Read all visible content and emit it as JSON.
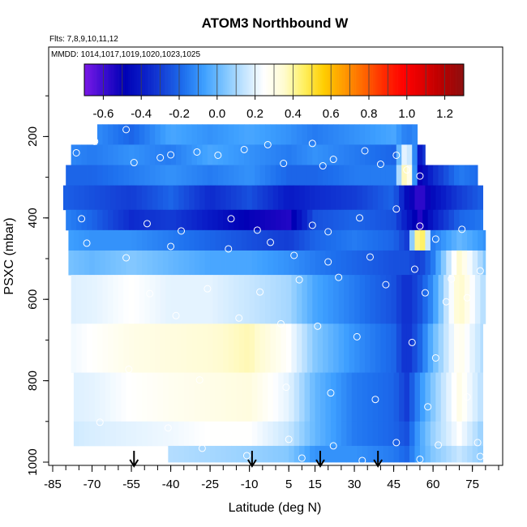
{
  "chart_data": {
    "type": "heatmap",
    "title": "ATOM3 Northbound W",
    "flights_note": "Flts: 7,8,9,10,11,12",
    "dates_note": "MMDD: 1014,1017,1019,1020,1023,1025",
    "xlabel": "Latitude (deg N)",
    "ylabel": "PSXC (mbar)",
    "xlim": [
      -85,
      85
    ],
    "ylim": [
      1000,
      0
    ],
    "x_ticks": [
      -85,
      -70,
      -55,
      -40,
      -25,
      -10,
      5,
      15,
      30,
      45,
      60,
      75
    ],
    "y_ticks": [
      200,
      400,
      600,
      800,
      1000
    ],
    "colorbar": {
      "range": [
        -0.7,
        1.3
      ],
      "ticks": [
        -0.6,
        -0.4,
        -0.2,
        0.0,
        0.2,
        0.4,
        0.6,
        0.8,
        1.0,
        1.2
      ],
      "tick_labels": [
        "-0.6",
        "-0.4",
        "-0.2",
        "0.0",
        "0.2",
        "0.4",
        "0.6",
        "0.8",
        "1.0",
        "1.2"
      ],
      "colors": [
        "#7a18e6",
        "#3a0cd0",
        "#0000b5",
        "#0a1ec8",
        "#1544d8",
        "#1e70ee",
        "#3ea0ff",
        "#7cc4ff",
        "#c2e4ff",
        "#ffffff",
        "#fffbd0",
        "#fff060",
        "#ffcd00",
        "#ff9a00",
        "#ff6600",
        "#ff2a00",
        "#ff0000",
        "#dd0000",
        "#b40000",
        "#8c1010"
      ]
    },
    "arrow_latitudes": [
      -54,
      -9,
      17,
      39
    ],
    "pressure_bands": [
      {
        "p": [
          170,
          220
        ],
        "lat": [
          -68,
          54
        ]
      },
      {
        "p": [
          220,
          270
        ],
        "lat": [
          -78,
          57
        ]
      },
      {
        "p": [
          270,
          320
        ],
        "lat": [
          -80,
          77
        ]
      },
      {
        "p": [
          320,
          380
        ],
        "lat": [
          -81,
          79
        ]
      },
      {
        "p": [
          380,
          430
        ],
        "lat": [
          -80,
          79
        ]
      },
      {
        "p": [
          430,
          480
        ],
        "lat": [
          -79,
          80
        ]
      },
      {
        "p": [
          480,
          540
        ],
        "lat": [
          -79,
          80
        ]
      },
      {
        "p": [
          540,
          660
        ],
        "lat": [
          -78,
          80
        ]
      },
      {
        "p": [
          660,
          780
        ],
        "lat": [
          -78,
          79
        ]
      },
      {
        "p": [
          780,
          900
        ],
        "lat": [
          -77,
          79
        ]
      },
      {
        "p": [
          900,
          960
        ],
        "lat": [
          -77,
          79
        ]
      },
      {
        "p": [
          960,
          1000
        ],
        "lat": [
          -41,
          79
        ]
      }
    ],
    "cross_section_w": [
      {
        "lat": -85,
        "w": [
          -0.1,
          -0.1,
          -0.2,
          -0.2,
          -0.1,
          -0.05,
          0.05,
          0.18,
          0.2,
          0.18,
          0.15,
          0.12
        ]
      },
      {
        "lat": -70,
        "w": [
          -0.1,
          -0.15,
          -0.2,
          -0.25,
          -0.2,
          -0.1,
          0.0,
          0.2,
          0.25,
          0.2,
          0.18,
          0.12
        ]
      },
      {
        "lat": -55,
        "w": [
          -0.2,
          -0.1,
          -0.15,
          -0.3,
          -0.35,
          -0.1,
          0.05,
          0.25,
          0.3,
          0.25,
          0.2,
          0.12
        ]
      },
      {
        "lat": -40,
        "w": [
          -0.05,
          -0.15,
          -0.1,
          -0.2,
          -0.3,
          -0.15,
          0.0,
          0.2,
          0.32,
          0.28,
          0.22,
          0.12
        ]
      },
      {
        "lat": -25,
        "w": [
          -0.1,
          -0.05,
          -0.15,
          -0.35,
          -0.4,
          -0.2,
          -0.05,
          0.2,
          0.34,
          0.3,
          0.25,
          0.1
        ]
      },
      {
        "lat": -10,
        "w": [
          -0.05,
          -0.1,
          -0.1,
          -0.25,
          -0.5,
          -0.25,
          -0.05,
          0.15,
          0.38,
          0.32,
          0.25,
          0.08
        ]
      },
      {
        "lat": 5,
        "w": [
          -0.1,
          -0.15,
          -0.2,
          -0.4,
          -0.55,
          -0.3,
          -0.1,
          0.1,
          0.25,
          0.2,
          0.15,
          0.05
        ]
      },
      {
        "lat": 15,
        "w": [
          -0.15,
          -0.1,
          -0.2,
          -0.35,
          -0.25,
          -0.2,
          -0.15,
          -0.05,
          0.05,
          0.0,
          0.0,
          -0.1
        ]
      },
      {
        "lat": 30,
        "w": [
          -0.1,
          -0.15,
          -0.15,
          -0.3,
          -0.2,
          -0.15,
          -0.2,
          -0.15,
          -0.1,
          -0.15,
          -0.15,
          -0.1
        ]
      },
      {
        "lat": 45,
        "w": [
          -0.05,
          -0.2,
          -0.15,
          -0.2,
          -0.25,
          -0.2,
          -0.25,
          -0.25,
          -0.2,
          -0.2,
          -0.2,
          -0.15
        ]
      },
      {
        "lat": 50,
        "w": [
          -0.15,
          0.3,
          0.5,
          -0.45,
          -0.4,
          -0.3,
          -0.25,
          -0.35,
          -0.35,
          -0.3,
          -0.25,
          -0.2
        ]
      },
      {
        "lat": 55,
        "w": [
          -0.1,
          -0.4,
          -0.5,
          -0.6,
          -0.55,
          0.6,
          -0.3,
          -0.25,
          -0.2,
          -0.1,
          -0.05,
          -0.05
        ]
      },
      {
        "lat": 60,
        "w": [
          -0.3,
          -0.2,
          -0.35,
          -0.45,
          -0.4,
          -0.15,
          -0.15,
          -0.1,
          0.0,
          0.05,
          0.08,
          0.05
        ]
      },
      {
        "lat": 70,
        "w": [
          -0.1,
          -0.2,
          -0.15,
          -0.3,
          -0.2,
          0.0,
          0.35,
          0.38,
          0.3,
          0.3,
          0.25,
          0.15
        ]
      },
      {
        "lat": 80,
        "w": [
          -0.05,
          -0.15,
          -0.2,
          -0.2,
          -0.15,
          -0.1,
          0.05,
          0.1,
          0.1,
          0.1,
          0.05,
          0.05
        ]
      }
    ],
    "sample_points": [
      [
        -57,
        183
      ],
      [
        -69,
        212
      ],
      [
        -76,
        240
      ],
      [
        -40,
        245
      ],
      [
        -30,
        238
      ],
      [
        -12,
        232
      ],
      [
        -3,
        220
      ],
      [
        14,
        217
      ],
      [
        34,
        235
      ],
      [
        46,
        246
      ],
      [
        -54,
        264
      ],
      [
        -44,
        252
      ],
      [
        -22,
        246
      ],
      [
        3,
        266
      ],
      [
        22,
        256
      ],
      [
        18,
        272
      ],
      [
        40,
        268
      ],
      [
        50,
        282
      ],
      [
        55,
        297
      ],
      [
        -85,
        332
      ],
      [
        -74,
        402
      ],
      [
        -49,
        414
      ],
      [
        -36,
        432
      ],
      [
        -17,
        402
      ],
      [
        -7,
        430
      ],
      [
        14,
        418
      ],
      [
        20,
        434
      ],
      [
        32,
        400
      ],
      [
        46,
        378
      ],
      [
        55,
        420
      ],
      [
        61,
        452
      ],
      [
        71,
        428
      ],
      [
        -72,
        462
      ],
      [
        -57,
        498
      ],
      [
        -40,
        470
      ],
      [
        -18,
        476
      ],
      [
        -2,
        460
      ],
      [
        7,
        492
      ],
      [
        20,
        508
      ],
      [
        36,
        496
      ],
      [
        53,
        526
      ],
      [
        67,
        550
      ],
      [
        78,
        530
      ],
      [
        -48,
        586
      ],
      [
        -26,
        574
      ],
      [
        -6,
        582
      ],
      [
        9,
        552
      ],
      [
        24,
        546
      ],
      [
        42,
        564
      ],
      [
        57,
        584
      ],
      [
        65,
        606
      ],
      [
        73,
        596
      ],
      [
        -38,
        640
      ],
      [
        -14,
        646
      ],
      [
        2,
        660
      ],
      [
        16,
        666
      ],
      [
        31,
        692
      ],
      [
        52,
        706
      ],
      [
        61,
        744
      ],
      [
        -56,
        772
      ],
      [
        -29,
        798
      ],
      [
        4,
        816
      ],
      [
        21,
        830
      ],
      [
        38,
        846
      ],
      [
        58,
        864
      ],
      [
        73,
        840
      ],
      [
        -67,
        902
      ],
      [
        -41,
        916
      ],
      [
        -18,
        930
      ],
      [
        5,
        944
      ],
      [
        22,
        960
      ],
      [
        46,
        952
      ],
      [
        62,
        958
      ],
      [
        77,
        952
      ],
      [
        -28,
        966
      ],
      [
        -11,
        984
      ],
      [
        10,
        990
      ],
      [
        33,
        996
      ],
      [
        55,
        993
      ],
      [
        78,
        986
      ]
    ]
  }
}
